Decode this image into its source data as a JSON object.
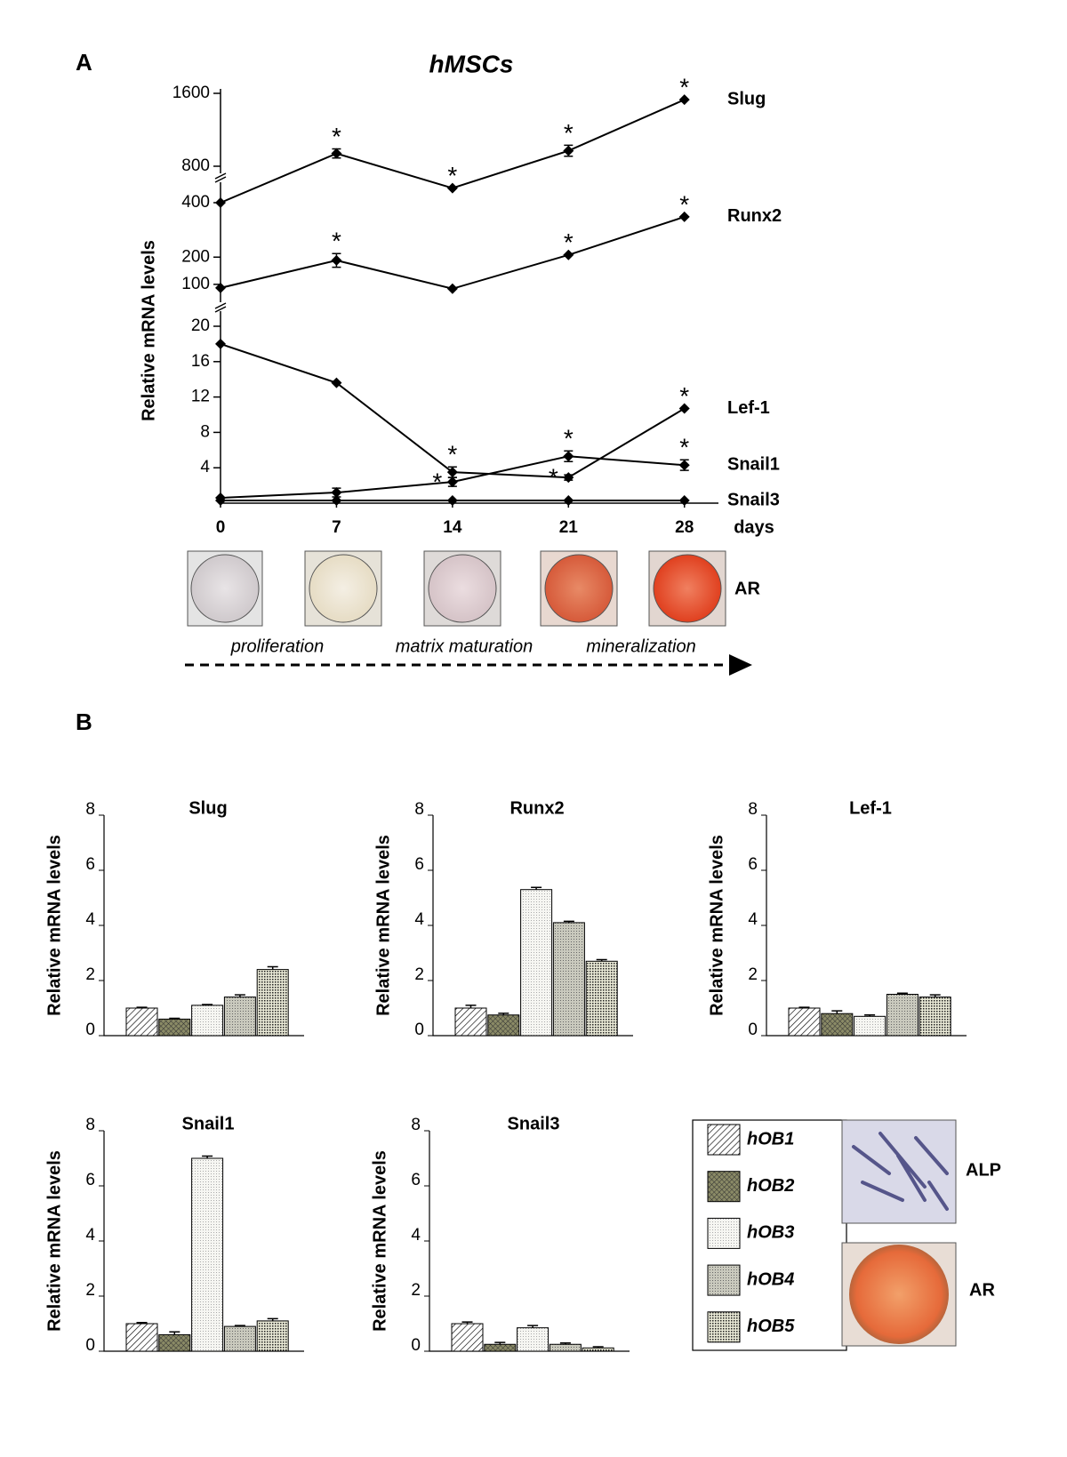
{
  "figure": {
    "panels": [
      "A",
      "B"
    ],
    "stain_labels": {
      "a_ar": "AR",
      "b_alp": "ALP",
      "b_ar": "AR"
    },
    "phases": [
      "proliferation",
      "matrix maturation",
      "mineralization"
    ]
  },
  "legend": {
    "items": [
      {
        "name": "hOB1",
        "pattern": "hatch"
      },
      {
        "name": "hOB2",
        "pattern": "cross"
      },
      {
        "name": "hOB3",
        "pattern": "dots-light"
      },
      {
        "name": "hOB4",
        "pattern": "dots-mid"
      },
      {
        "name": "hOB5",
        "pattern": "dots-dark"
      }
    ]
  },
  "chart_data": [
    {
      "type": "line",
      "title": "hMSCs",
      "x_label": "days",
      "y_label": "Relative mRNA levels",
      "x": [
        0,
        7,
        14,
        21,
        28
      ],
      "xlim": [
        0,
        30
      ],
      "xticks": [
        0,
        7,
        14,
        21,
        28
      ],
      "y_segments": [
        {
          "ylim": [
            0,
            20
          ],
          "yticks": [
            4,
            8,
            12,
            16,
            20
          ]
        },
        {
          "ylim": [
            80,
            400
          ],
          "yticks": [
            100,
            200,
            400
          ]
        },
        {
          "ylim": [
            400,
            1600
          ],
          "yticks": [
            800,
            1600
          ]
        }
      ],
      "series": [
        {
          "name": "Slug",
          "values": [
            400,
            940,
            560,
            970,
            1530
          ],
          "errors": [
            0,
            50,
            0,
            60,
            0
          ],
          "markers": [
            null,
            "*",
            "*",
            "*",
            "*"
          ]
        },
        {
          "name": "Runx2",
          "values": [
            87,
            188,
            84,
            208,
            348
          ],
          "errors": [
            0,
            25,
            0,
            0,
            0
          ],
          "markers": [
            null,
            "*",
            null,
            "*",
            "*"
          ]
        },
        {
          "name": "Lef-1",
          "values": [
            18,
            13.6,
            3.5,
            2.9,
            10.7
          ],
          "errors": [
            0,
            0,
            0.6,
            0.3,
            0
          ],
          "markers": [
            null,
            null,
            "*",
            "*",
            "*"
          ]
        },
        {
          "name": "Snail1",
          "values": [
            0.6,
            1.2,
            2.4,
            5.3,
            4.3
          ],
          "errors": [
            0,
            0.5,
            0.5,
            0.6,
            0.6
          ],
          "markers": [
            null,
            null,
            "*",
            "*",
            "*"
          ]
        },
        {
          "name": "Snail3",
          "values": [
            0.3,
            0.3,
            0.3,
            0.3,
            0.3
          ],
          "errors": [
            0,
            0,
            0,
            0,
            0
          ],
          "markers": [
            null,
            null,
            null,
            null,
            null
          ]
        }
      ]
    },
    {
      "type": "bar",
      "title": "Slug",
      "y_label": "Relative mRNA levels",
      "values": [
        1.0,
        0.6,
        1.1,
        1.4,
        2.4
      ],
      "errors": [
        0.03,
        0.03,
        0.03,
        0.08,
        0.1
      ],
      "ylim": [
        0,
        8
      ],
      "yticks": [
        0,
        2,
        4,
        6,
        8
      ]
    },
    {
      "type": "bar",
      "title": "Runx2",
      "y_label": "Relative mRNA levels",
      "values": [
        1.0,
        0.75,
        5.3,
        4.1,
        2.7
      ],
      "errors": [
        0.1,
        0.06,
        0.08,
        0.05,
        0.06
      ],
      "ylim": [
        0,
        8
      ],
      "yticks": [
        0,
        2,
        4,
        6,
        8
      ]
    },
    {
      "type": "bar",
      "title": "Lef-1",
      "y_label": "Relative mRNA levels",
      "values": [
        1.0,
        0.8,
        0.7,
        1.5,
        1.4
      ],
      "errors": [
        0.03,
        0.1,
        0.05,
        0.04,
        0.08
      ],
      "ylim": [
        0,
        8
      ],
      "yticks": [
        0,
        2,
        4,
        6,
        8
      ]
    },
    {
      "type": "bar",
      "title": "Snail1",
      "y_label": "Relative mRNA levels",
      "values": [
        1.0,
        0.6,
        7.0,
        0.9,
        1.1
      ],
      "errors": [
        0.04,
        0.1,
        0.08,
        0.03,
        0.08
      ],
      "ylim": [
        0,
        8
      ],
      "yticks": [
        0,
        2,
        4,
        6,
        8
      ]
    },
    {
      "type": "bar",
      "title": "Snail3",
      "y_label": "Relative mRNA levels",
      "values": [
        1.0,
        0.25,
        0.85,
        0.25,
        0.12
      ],
      "errors": [
        0.06,
        0.07,
        0.08,
        0.05,
        0.04
      ],
      "ylim": [
        0,
        8
      ],
      "yticks": [
        0,
        2,
        4,
        6,
        8
      ]
    }
  ]
}
